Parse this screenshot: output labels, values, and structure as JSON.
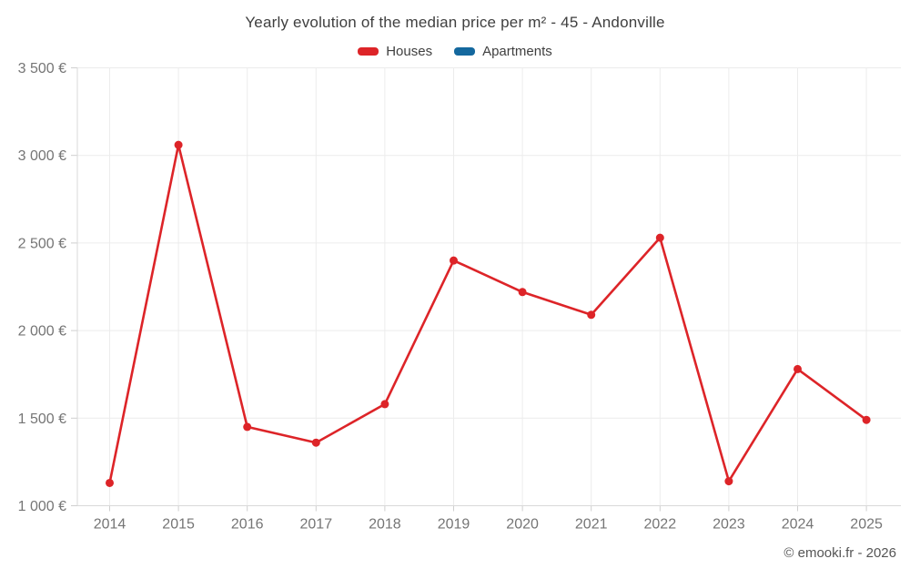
{
  "chart_data": {
    "type": "line",
    "title": "Yearly evolution of the median price per m² - 45 - Andonville",
    "categories": [
      "2014",
      "2015",
      "2016",
      "2017",
      "2018",
      "2019",
      "2020",
      "2021",
      "2022",
      "2023",
      "2024",
      "2025"
    ],
    "series": [
      {
        "name": "Houses",
        "color": "#dd2428",
        "values": [
          1130,
          3060,
          1450,
          1360,
          1580,
          2400,
          2220,
          2090,
          2530,
          1140,
          1780,
          1490
        ]
      },
      {
        "name": "Apartments",
        "color": "#14689e",
        "values": []
      }
    ],
    "xlabel": "",
    "ylabel": "",
    "ylim": [
      1000,
      3500
    ],
    "y_ticks": [
      {
        "value": 1000,
        "label": "1 000 €"
      },
      {
        "value": 1500,
        "label": "1 500 €"
      },
      {
        "value": 2000,
        "label": "2 000 €"
      },
      {
        "value": 2500,
        "label": "2 500 €"
      },
      {
        "value": 3000,
        "label": "3 000 €"
      },
      {
        "value": 3500,
        "label": "3 500 €"
      }
    ],
    "grid": true,
    "legend_position": "top",
    "colors": {
      "grid": "#ececec",
      "axis": "#d9d9d9",
      "tick": "#cfcfcf",
      "tick_label": "#757575",
      "title_text": "#3f3f3f"
    }
  },
  "footer": {
    "copyright": "© emooki.fr - 2026"
  }
}
